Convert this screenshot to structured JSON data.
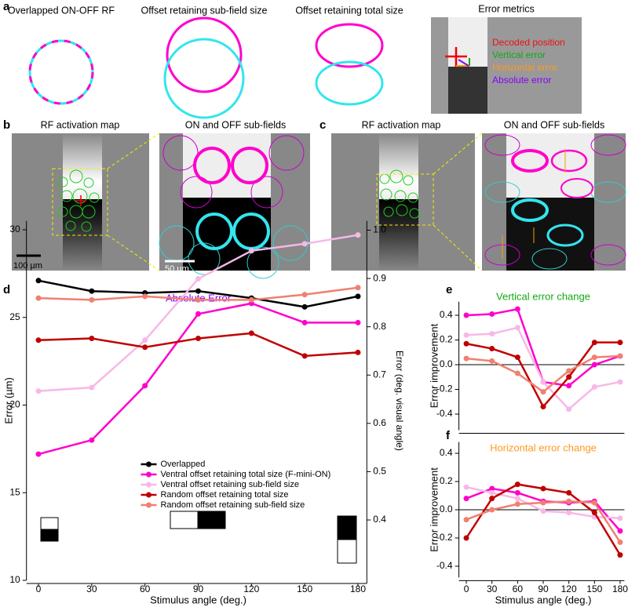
{
  "panel_labels": [
    "a",
    "b",
    "c",
    "d",
    "e",
    "f"
  ],
  "panel_a": {
    "titles": [
      "Overlapped ON-OFF RF",
      "Offset retaining sub-field size",
      "Offset retaining total size",
      "Error metrics"
    ],
    "legend": [
      "Decoded position",
      "Vertical error",
      "Horizontal error",
      "Absolute error"
    ]
  },
  "panel_b": {
    "titles": [
      "RF activation map",
      "ON and OFF sub-fields"
    ],
    "scale_bars": [
      "100 µm",
      "50 µm"
    ]
  },
  "panel_c": {
    "titles": [
      "RF activation map",
      "ON and OFF sub-fields"
    ]
  },
  "chart_data": [
    {
      "type": "line",
      "title": "Absolute Error",
      "xlabel": "Stimulus angle (deg.)",
      "ylabel": "Error (µm)",
      "y2label": "Error (deg. visual angle)",
      "x": [
        0,
        30,
        60,
        90,
        120,
        150,
        180
      ],
      "xlim": [
        -5,
        185
      ],
      "xticks": [
        0,
        30,
        60,
        90,
        120,
        150,
        180
      ],
      "ylim": [
        10,
        30.5
      ],
      "yticks": [
        10,
        15,
        20,
        25,
        30
      ],
      "y2lim": [
        0.275,
        1.019
      ],
      "y2ticks": [
        0.4,
        0.5,
        0.6,
        0.7,
        0.8,
        0.9,
        {
          "value": 1,
          "label": "1.0"
        }
      ],
      "legend": "lower center",
      "series": [
        {
          "name": "Overlapped",
          "color": "#000000",
          "values": [
            27.1,
            26.5,
            26.4,
            26.5,
            26.1,
            25.6,
            26.2
          ]
        },
        {
          "name": "Ventral offset retaining total size (F-mini-ON)",
          "color": "#ff00cc",
          "values": [
            17.2,
            18.0,
            21.1,
            25.2,
            25.8,
            24.7,
            24.7
          ]
        },
        {
          "name": "Ventral offset retaining sub-field size",
          "color": "#f7b8e6",
          "values": [
            20.8,
            21.0,
            23.7,
            27.2,
            28.8,
            29.2,
            29.7
          ]
        },
        {
          "name": "Random offset retaining total size",
          "color": "#c00000",
          "values": [
            23.7,
            23.8,
            23.3,
            23.8,
            24.1,
            22.8,
            23.0
          ]
        },
        {
          "name": "Random offset retaining sub-field size",
          "color": "#f08070",
          "values": [
            26.1,
            26.0,
            26.2,
            26.0,
            26.0,
            26.3,
            26.7
          ]
        }
      ]
    },
    {
      "type": "line",
      "title": "Vertical error change",
      "ylabel": "Error improvement",
      "x": [
        0,
        30,
        60,
        90,
        120,
        150,
        180
      ],
      "xlim": [
        -5,
        185
      ],
      "ylim": [
        -0.53,
        0.51
      ],
      "yticks": [
        -0.4,
        -0.2,
        {
          "value": 0,
          "label": "0.0"
        },
        0.2,
        0.4
      ],
      "zero_line": true,
      "series": [
        {
          "color": "#ff00cc",
          "values": [
            0.4,
            0.41,
            0.45,
            -0.14,
            -0.17,
            0.0,
            0.07
          ]
        },
        {
          "color": "#f7b8e6",
          "values": [
            0.24,
            0.25,
            0.3,
            -0.14,
            -0.36,
            -0.18,
            -0.14
          ]
        },
        {
          "color": "#c00000",
          "values": [
            0.17,
            0.13,
            0.06,
            -0.34,
            -0.1,
            0.18,
            0.18
          ]
        },
        {
          "color": "#f08070",
          "values": [
            0.05,
            0.03,
            -0.07,
            -0.22,
            -0.05,
            0.06,
            0.07
          ]
        }
      ]
    },
    {
      "type": "line",
      "title": "Horizontal error change",
      "xlabel": "Stimulus angle (deg.)",
      "ylabel": "Error improvement",
      "x": [
        0,
        30,
        60,
        90,
        120,
        150,
        180
      ],
      "xlim": [
        -5,
        185
      ],
      "xticks": [
        0,
        30,
        60,
        90,
        120,
        150,
        180
      ],
      "ylim": [
        -0.48,
        0.48
      ],
      "yticks": [
        -0.4,
        -0.2,
        {
          "value": 0,
          "label": "0.0"
        },
        0.2,
        0.4
      ],
      "zero_line": true,
      "series": [
        {
          "color": "#ff00cc",
          "values": [
            0.08,
            0.15,
            0.12,
            0.06,
            0.05,
            0.06,
            -0.15
          ]
        },
        {
          "color": "#f7b8e6",
          "values": [
            0.16,
            0.12,
            0.08,
            -0.01,
            -0.02,
            -0.05,
            -0.06
          ]
        },
        {
          "color": "#c00000",
          "values": [
            -0.2,
            0.08,
            0.18,
            0.15,
            0.12,
            -0.02,
            -0.32
          ]
        },
        {
          "color": "#f08070",
          "values": [
            -0.07,
            0.0,
            0.04,
            0.05,
            0.06,
            0.05,
            -0.23
          ]
        }
      ]
    }
  ]
}
